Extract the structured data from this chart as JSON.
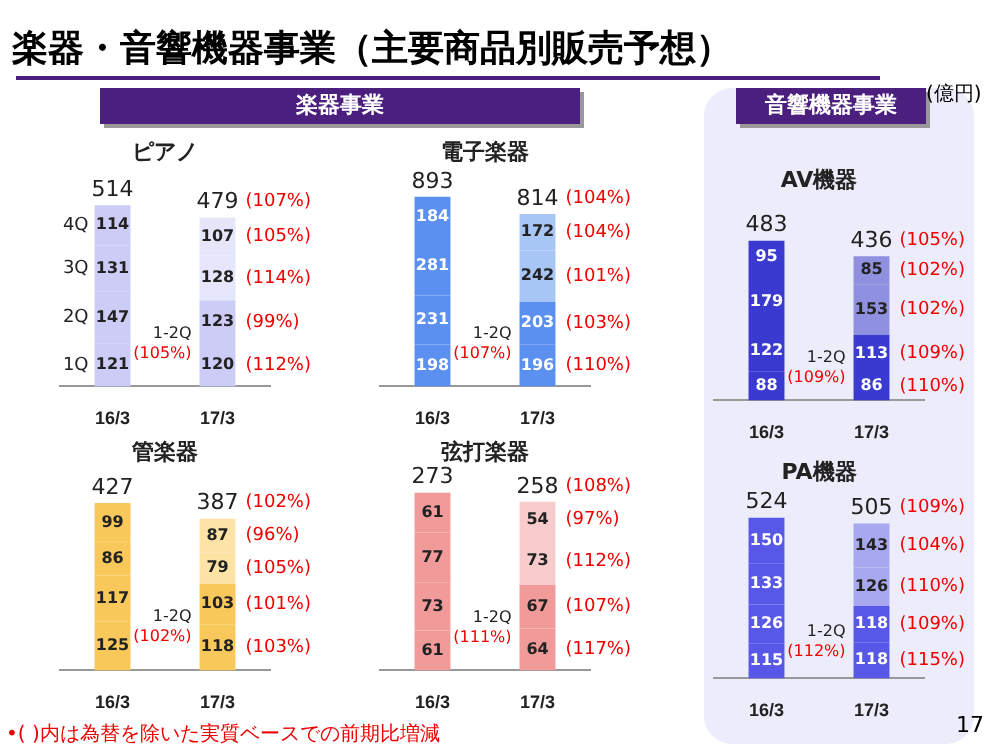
{
  "chart_data": [
    {
      "type": "bar",
      "title": "ピアノ",
      "stacked": true,
      "data_labels": true,
      "categories": [
        "16/3",
        "17/3"
      ],
      "totals": [
        "514",
        "479"
      ],
      "series": [
        {
          "name": "1Q",
          "colors": [
            "#ccccf6",
            "#ccccf6"
          ],
          "values": [
            121,
            120
          ]
        },
        {
          "name": "2Q",
          "colors": [
            "#ccccf6",
            "#ccccf6"
          ],
          "values": [
            147,
            123
          ]
        },
        {
          "name": "3Q",
          "colors": [
            "#ccccf6",
            "#e6e6fb"
          ],
          "values": [
            131,
            128
          ]
        },
        {
          "name": "4Q",
          "colors": [
            "#ccccf6",
            "#e6e6fb"
          ],
          "values": [
            114,
            107
          ]
        }
      ],
      "annotations": [
        "楽器・音響機器事業（主要商品別販売予想）",
        "楽器事業",
        "1-2Q\n(105%)",
        "(107%)",
        "(105%)",
        "(114%)",
        "(99%)",
        "(112%)"
      ]
    },
    {
      "type": "bar",
      "title": "電子楽器",
      "stacked": true,
      "data_labels": true,
      "categories": [
        "16/3",
        "17/3"
      ],
      "totals": [
        "893",
        "814"
      ],
      "series": [
        {
          "colors": [
            "#5b8ff0",
            "#5b8ff0"
          ],
          "values": [
            198,
            196
          ]
        },
        {
          "colors": [
            "#5b8ff0",
            "#5b8ff0"
          ],
          "values": [
            231,
            203
          ]
        },
        {
          "colors": [
            "#5b8ff0",
            "#a8c6f5"
          ],
          "values": [
            281,
            242
          ]
        },
        {
          "colors": [
            "#5b8ff0",
            "#a8c6f5"
          ],
          "values": [
            184,
            172
          ]
        }
      ],
      "annotations": [
        "1-2Q\n(107%)",
        "(104%)",
        "(104%)",
        "(101%)",
        "(103%)",
        "(110%)"
      ]
    },
    {
      "type": "bar",
      "title": "管楽器",
      "stacked": true,
      "data_labels": true,
      "categories": [
        "16/3",
        "17/3"
      ],
      "totals": [
        "427",
        "387"
      ],
      "series": [
        {
          "colors": [
            "#f8c85a",
            "#f8c85a"
          ],
          "values": [
            125,
            118
          ]
        },
        {
          "colors": [
            "#f8c85a",
            "#f8c85a"
          ],
          "values": [
            117,
            103
          ]
        },
        {
          "colors": [
            "#f8c85a",
            "#fde3a6"
          ],
          "values": [
            86,
            79
          ]
        },
        {
          "colors": [
            "#f8c85a",
            "#fde3a6"
          ],
          "values": [
            99,
            87
          ]
        }
      ],
      "annotations": [
        "•( )内は為替を除いた実質ベースでの前期比増減",
        "1-2Q\n(102%)",
        "(102%)",
        "(96%)",
        "(105%)",
        "(101%)",
        "(103%)"
      ]
    },
    {
      "type": "bar",
      "title": "弦打楽器",
      "stacked": true,
      "data_labels": true,
      "categories": [
        "16/3",
        "17/3"
      ],
      "totals": [
        "273",
        "258"
      ],
      "series": [
        {
          "colors": [
            "#f09a9a",
            "#f09a9a"
          ],
          "values": [
            61,
            64
          ]
        },
        {
          "colors": [
            "#f09a9a",
            "#f09a9a"
          ],
          "values": [
            73,
            67
          ]
        },
        {
          "colors": [
            "#f09a9a",
            "#f8cccc"
          ],
          "values": [
            77,
            73
          ]
        },
        {
          "colors": [
            "#f09a9a",
            "#f8cccc"
          ],
          "values": [
            61,
            54
          ]
        }
      ],
      "annotations": [
        "1-2Q\n(111%)",
        "(108%)",
        "(97%)",
        "(112%)",
        "(107%)",
        "(117%)"
      ]
    },
    {
      "type": "bar",
      "title": "AV機器",
      "stacked": true,
      "data_labels": true,
      "categories": [
        "16/3",
        "17/3"
      ],
      "totals": [
        "483",
        "436"
      ],
      "series": [
        {
          "colors": [
            "#3a3ad0",
            "#3a3ad0"
          ],
          "values": [
            88,
            86
          ]
        },
        {
          "colors": [
            "#3a3ad0",
            "#3a3ad0"
          ],
          "values": [
            122,
            113
          ]
        },
        {
          "colors": [
            "#3a3ad0",
            "#9090e0"
          ],
          "values": [
            179,
            153
          ]
        },
        {
          "colors": [
            "#3a3ad0",
            "#9090e0"
          ],
          "values": [
            95,
            85
          ]
        }
      ],
      "annotations": [
        "音響機器事業",
        "(億円)",
        "1-2Q\n(109%)",
        "(105%)",
        "(102%)",
        "(102%)",
        "(109%)",
        "(110%)"
      ]
    },
    {
      "type": "bar",
      "title": "PA機器",
      "stacked": true,
      "data_labels": true,
      "categories": [
        "16/3",
        "17/3"
      ],
      "totals": [
        "524",
        "505"
      ],
      "series": [
        {
          "colors": [
            "#5858e8",
            "#5858e8"
          ],
          "values": [
            115,
            118
          ]
        },
        {
          "colors": [
            "#5858e8",
            "#5858e8"
          ],
          "values": [
            126,
            118
          ]
        },
        {
          "colors": [
            "#5858e8",
            "#a8a8f0"
          ],
          "values": [
            133,
            126
          ]
        },
        {
          "colors": [
            "#5858e8",
            "#a8a8f0"
          ],
          "values": [
            150,
            143
          ]
        }
      ],
      "annotations": [
        "17",
        "1-2Q\n(112%)",
        "(109%)",
        "(104%)",
        "(110%)",
        "(109%)",
        "(115%)"
      ]
    }
  ]
}
